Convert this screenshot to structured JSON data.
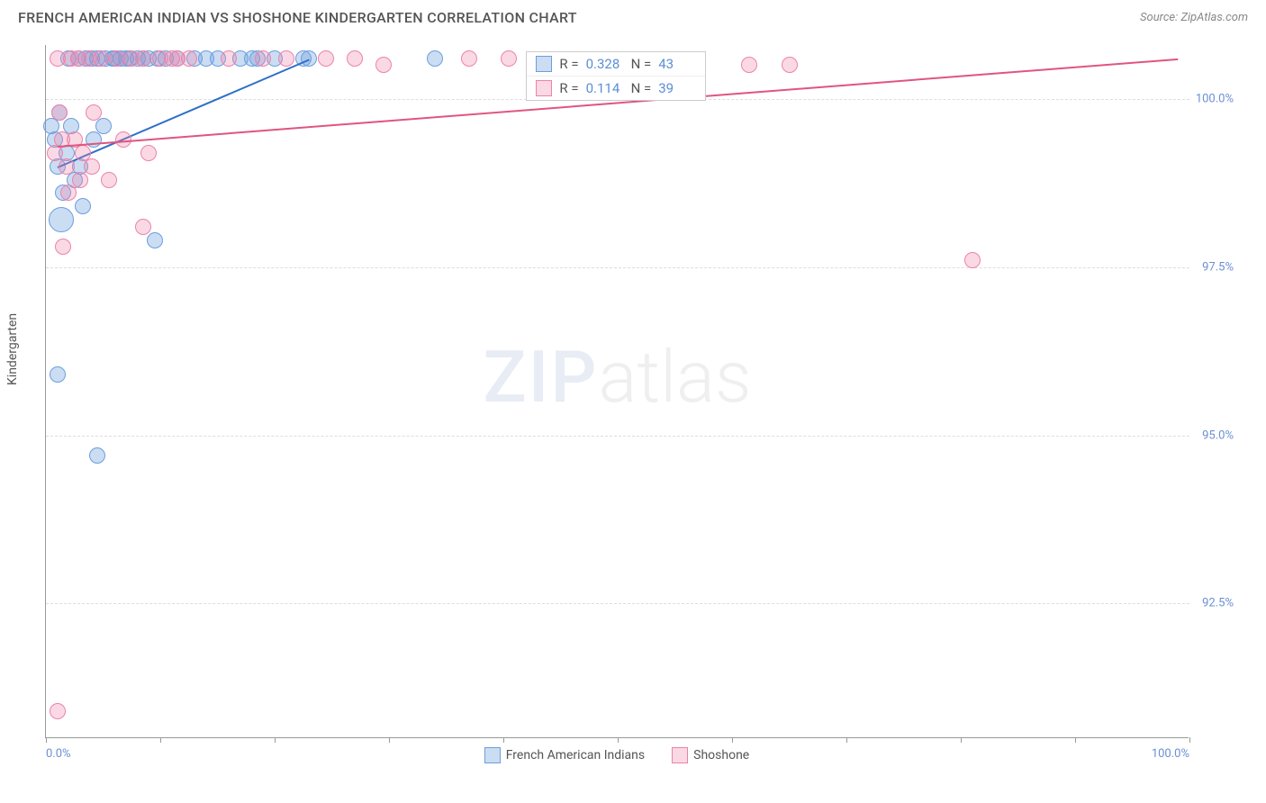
{
  "header": {
    "title": "FRENCH AMERICAN INDIAN VS SHOSHONE KINDERGARTEN CORRELATION CHART",
    "source_prefix": "Source: ",
    "source_name": "ZipAtlas.com"
  },
  "chart": {
    "type": "scatter",
    "y_axis_label": "Kindergarten",
    "background_color": "#ffffff",
    "grid_color": "#dddddd",
    "axis_color": "#999999",
    "tick_label_color": "#6b8fd4",
    "watermark": {
      "part1": "ZIP",
      "part2": "atlas"
    },
    "xlim": [
      0,
      100
    ],
    "ylim": [
      90.5,
      100.8
    ],
    "xtick_positions": [
      0,
      10,
      20,
      30,
      40,
      50,
      60,
      70,
      80,
      90,
      100
    ],
    "xtick_labels": {
      "0": "0.0%",
      "100": "100.0%"
    },
    "yticks": [
      {
        "v": 100.0,
        "label": "100.0%"
      },
      {
        "v": 97.5,
        "label": "97.5%"
      },
      {
        "v": 95.0,
        "label": "95.0%"
      },
      {
        "v": 92.5,
        "label": "92.5%"
      }
    ],
    "series": [
      {
        "name": "french_american_indians",
        "label": "French American Indians",
        "fill_color": "rgba(107,158,222,0.35)",
        "stroke_color": "#6b9ede",
        "trend_color": "#2f6fc9",
        "stats": {
          "r": "0.328",
          "n": "43"
        },
        "trend": {
          "x1": 1.0,
          "y1": 99.0,
          "x2": 23.0,
          "y2": 100.6
        },
        "marker_radius": 9,
        "points": [
          {
            "x": 0.5,
            "y": 99.6
          },
          {
            "x": 0.8,
            "y": 99.4
          },
          {
            "x": 1.0,
            "y": 99.0
          },
          {
            "x": 1.2,
            "y": 99.8
          },
          {
            "x": 1.5,
            "y": 98.6
          },
          {
            "x": 1.8,
            "y": 99.2
          },
          {
            "x": 2.0,
            "y": 100.6
          },
          {
            "x": 2.2,
            "y": 99.6
          },
          {
            "x": 2.5,
            "y": 98.8
          },
          {
            "x": 2.8,
            "y": 100.6
          },
          {
            "x": 3.0,
            "y": 99.0
          },
          {
            "x": 3.2,
            "y": 98.4
          },
          {
            "x": 3.5,
            "y": 100.6
          },
          {
            "x": 4.0,
            "y": 100.6
          },
          {
            "x": 4.2,
            "y": 99.4
          },
          {
            "x": 4.5,
            "y": 100.6
          },
          {
            "x": 5.0,
            "y": 99.6
          },
          {
            "x": 5.2,
            "y": 100.6
          },
          {
            "x": 5.8,
            "y": 100.6
          },
          {
            "x": 6.0,
            "y": 100.6
          },
          {
            "x": 6.5,
            "y": 100.6
          },
          {
            "x": 7.0,
            "y": 100.6
          },
          {
            "x": 7.3,
            "y": 100.6
          },
          {
            "x": 8.0,
            "y": 100.6
          },
          {
            "x": 8.5,
            "y": 100.6
          },
          {
            "x": 9.0,
            "y": 100.6
          },
          {
            "x": 9.8,
            "y": 100.6
          },
          {
            "x": 10.5,
            "y": 100.6
          },
          {
            "x": 11.5,
            "y": 100.6
          },
          {
            "x": 13.0,
            "y": 100.6
          },
          {
            "x": 14.0,
            "y": 100.6
          },
          {
            "x": 15.0,
            "y": 100.6
          },
          {
            "x": 17.0,
            "y": 100.6
          },
          {
            "x": 18.0,
            "y": 100.6
          },
          {
            "x": 18.5,
            "y": 100.6
          },
          {
            "x": 20.0,
            "y": 100.6
          },
          {
            "x": 22.5,
            "y": 100.6
          },
          {
            "x": 23.0,
            "y": 100.6
          },
          {
            "x": 34.0,
            "y": 100.6
          },
          {
            "x": 9.5,
            "y": 97.9
          },
          {
            "x": 1.0,
            "y": 95.9
          },
          {
            "x": 4.5,
            "y": 94.7
          },
          {
            "x": 1.3,
            "y": 98.2,
            "r": 14
          }
        ]
      },
      {
        "name": "shoshone",
        "label": "Shoshone",
        "fill_color": "rgba(237,130,170,0.30)",
        "stroke_color": "#ed82aa",
        "trend_color": "#e0557f",
        "stats": {
          "r": "0.114",
          "n": "39"
        },
        "trend": {
          "x1": 1.0,
          "y1": 99.3,
          "x2": 99.0,
          "y2": 100.6
        },
        "marker_radius": 9,
        "points": [
          {
            "x": 0.8,
            "y": 99.2
          },
          {
            "x": 1.0,
            "y": 100.6
          },
          {
            "x": 1.2,
            "y": 99.8
          },
          {
            "x": 1.4,
            "y": 99.4
          },
          {
            "x": 1.8,
            "y": 99.0
          },
          {
            "x": 2.0,
            "y": 98.6
          },
          {
            "x": 2.2,
            "y": 100.6
          },
          {
            "x": 2.5,
            "y": 99.4
          },
          {
            "x": 2.8,
            "y": 100.6
          },
          {
            "x": 3.0,
            "y": 98.8
          },
          {
            "x": 3.2,
            "y": 99.2
          },
          {
            "x": 3.8,
            "y": 100.6
          },
          {
            "x": 4.0,
            "y": 99.0
          },
          {
            "x": 4.2,
            "y": 99.8
          },
          {
            "x": 4.8,
            "y": 100.6
          },
          {
            "x": 5.5,
            "y": 98.8
          },
          {
            "x": 6.2,
            "y": 100.6
          },
          {
            "x": 6.8,
            "y": 99.4
          },
          {
            "x": 7.5,
            "y": 100.6
          },
          {
            "x": 8.5,
            "y": 100.6
          },
          {
            "x": 9.0,
            "y": 99.2
          },
          {
            "x": 10.0,
            "y": 100.6
          },
          {
            "x": 11.0,
            "y": 100.6
          },
          {
            "x": 11.5,
            "y": 100.6
          },
          {
            "x": 12.5,
            "y": 100.6
          },
          {
            "x": 16.0,
            "y": 100.6
          },
          {
            "x": 19.0,
            "y": 100.6
          },
          {
            "x": 21.0,
            "y": 100.6
          },
          {
            "x": 24.5,
            "y": 100.6
          },
          {
            "x": 27.0,
            "y": 100.6
          },
          {
            "x": 29.5,
            "y": 100.5
          },
          {
            "x": 37.0,
            "y": 100.6
          },
          {
            "x": 40.5,
            "y": 100.6
          },
          {
            "x": 61.5,
            "y": 100.5
          },
          {
            "x": 65.0,
            "y": 100.5
          },
          {
            "x": 8.5,
            "y": 98.1
          },
          {
            "x": 1.5,
            "y": 97.8
          },
          {
            "x": 81.0,
            "y": 97.6
          },
          {
            "x": 1.0,
            "y": 90.9
          }
        ]
      }
    ],
    "stats_box": {
      "r_label": "R =",
      "n_label": "N ="
    }
  },
  "legend": {
    "items": [
      {
        "label": "French American Indians",
        "fill": "rgba(107,158,222,0.35)",
        "stroke": "#6b9ede"
      },
      {
        "label": "Shoshone",
        "fill": "rgba(237,130,170,0.30)",
        "stroke": "#ed82aa"
      }
    ]
  }
}
